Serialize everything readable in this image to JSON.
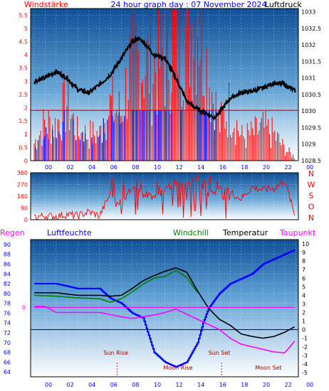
{
  "chart_data": [
    {
      "type": "line",
      "title": "24 hour graph day : 07 November 2024",
      "left_label": "Windstärke",
      "right_label": "Luftdruck",
      "y_left_ticks": [
        "0",
        "0.5",
        "1",
        "1.5",
        "2",
        "2.5",
        "3",
        "3.5",
        "4",
        "4.5",
        "5",
        "5.5"
      ],
      "y_right_ticks": [
        "1028.5",
        "1029",
        "1029.5",
        "1030",
        "1030.5",
        "1031",
        "1031.5",
        "1032",
        "1032.5",
        "1033"
      ],
      "x_ticks": [
        "00",
        "02",
        "04",
        "06",
        "08",
        "10",
        "12",
        "14",
        "16",
        "18",
        "20",
        "22",
        "00"
      ],
      "ylim_left": [
        0,
        5.75
      ],
      "ylim_right": [
        1028.5,
        1033.1
      ],
      "series": [
        {
          "name": "Luftdruck",
          "color": "#000000",
          "x": [
            0,
            1,
            2,
            3,
            4,
            5,
            6,
            7,
            8,
            9,
            9.5,
            10,
            11,
            12,
            13,
            14,
            15,
            16,
            16.5,
            17,
            18,
            19,
            20,
            21,
            22,
            23,
            24
          ],
          "y": [
            1030.9,
            1031.0,
            1031.2,
            1031.0,
            1030.65,
            1030.55,
            1030.8,
            1031.1,
            1031.6,
            1032.1,
            1032.2,
            1032.1,
            1031.7,
            1031.6,
            1031.0,
            1030.3,
            1030.05,
            1029.9,
            1029.8,
            1029.95,
            1030.4,
            1030.55,
            1030.6,
            1030.7,
            1030.85,
            1030.8,
            1030.6
          ]
        },
        {
          "name": "Windstärke",
          "color": "#ff0000",
          "x": [
            0,
            1,
            2,
            3,
            4,
            5,
            6,
            7,
            8,
            9,
            10,
            11,
            12,
            13,
            14,
            15,
            16,
            17,
            18,
            19,
            20,
            21,
            22,
            23,
            24
          ],
          "y": [
            0.6,
            1.3,
            1.2,
            2.0,
            0.9,
            0.9,
            0.9,
            1.9,
            1.6,
            3.7,
            3.4,
            3.2,
            3.6,
            4.6,
            4.4,
            5.2,
            3.0,
            1.2,
            1.9,
            0.8,
            0.9,
            1.1,
            0.9,
            0.4,
            0.1
          ]
        }
      ]
    },
    {
      "type": "line",
      "right_label_letters": [
        "N",
        "W",
        "S",
        "O",
        "N"
      ],
      "y_ticks": [
        "0",
        "90",
        "180",
        "270",
        "360"
      ],
      "ylim": [
        0,
        360
      ],
      "series": [
        {
          "name": "Windrichtung",
          "color": "#ff0000",
          "x": [
            0,
            1,
            2,
            3,
            4,
            5,
            6,
            7,
            8,
            9,
            10,
            11,
            12,
            13,
            14,
            15,
            16,
            17,
            18,
            19,
            20,
            21,
            22,
            23,
            24
          ],
          "y": [
            20,
            30,
            25,
            40,
            30,
            60,
            30,
            200,
            120,
            250,
            200,
            180,
            230,
            300,
            280,
            320,
            200,
            230,
            210,
            160,
            250,
            230,
            240,
            300,
            10
          ]
        }
      ]
    },
    {
      "type": "line",
      "legend": [
        "Regen",
        "Luftfeuchte",
        "Windchill",
        "Temperatur",
        "Taupunkt"
      ],
      "y_left_ticks": [
        "64",
        "66",
        "68",
        "70",
        "72",
        "74",
        "76",
        "78",
        "80",
        "82",
        "84",
        "86",
        "88",
        "90"
      ],
      "y_right_ticks": [
        "-5",
        "-4",
        "-3",
        "-2",
        "-1",
        "0",
        "1",
        "2",
        "3",
        "4",
        "5",
        "6",
        "7",
        "8",
        "9",
        "10"
      ],
      "regen_zero_label": "0",
      "x_ticks": [
        "00",
        "02",
        "04",
        "06",
        "08",
        "10",
        "12",
        "14",
        "16",
        "18",
        "20",
        "22",
        "00"
      ],
      "annotations": [
        "Sun Rise",
        "Moon Rise",
        "Sun Set",
        "Moon Set"
      ],
      "ylim_left": [
        63,
        91
      ],
      "ylim_right": [
        -5.5,
        10.5
      ],
      "series": [
        {
          "name": "Luftfeuchte",
          "color": "#0000ff",
          "axis": "left",
          "x": [
            0,
            2,
            4,
            6,
            7,
            8,
            9,
            10,
            11,
            12,
            13,
            14,
            15,
            15.5,
            16,
            17,
            18,
            19,
            20,
            21,
            22,
            23,
            24
          ],
          "y": [
            82,
            82,
            81,
            81,
            79,
            78,
            76,
            75,
            68,
            66,
            65,
            66,
            70,
            74,
            77,
            80,
            82,
            83,
            84,
            86,
            87,
            88,
            89
          ]
        },
        {
          "name": "Temperatur",
          "color": "#000000",
          "axis": "right",
          "x": [
            0,
            2,
            4,
            6,
            7,
            8,
            9,
            10,
            11,
            12,
            13,
            14,
            15,
            16,
            17,
            18,
            19,
            20,
            21,
            22,
            23,
            24
          ],
          "y": [
            4.3,
            4.3,
            4.0,
            4.0,
            3.9,
            4.0,
            4.8,
            5.7,
            6.3,
            6.8,
            7.2,
            6.7,
            4.5,
            2.5,
            1.2,
            0.5,
            -0.5,
            -0.8,
            -1.0,
            -0.8,
            -0.3,
            0.4
          ]
        },
        {
          "name": "Windchill",
          "color": "#008000",
          "axis": "right",
          "x": [
            0,
            2,
            4,
            6,
            7,
            8,
            9,
            10,
            11,
            12,
            13,
            14,
            15
          ],
          "y": [
            4.0,
            3.9,
            3.7,
            3.6,
            3.2,
            3.6,
            4.4,
            5.3,
            6.0,
            6.2,
            6.9,
            6.1,
            4.3
          ]
        },
        {
          "name": "Taupunkt",
          "color": "#ff00ff",
          "axis": "right",
          "x": [
            0,
            1,
            2,
            4,
            6,
            8,
            9,
            10,
            11,
            12,
            13,
            14,
            15,
            16,
            17,
            18,
            19,
            20,
            21,
            22,
            23,
            24
          ],
          "y": [
            2.7,
            2.7,
            2.0,
            2.0,
            2.0,
            1.5,
            1.3,
            1.5,
            1.7,
            2.0,
            2.4,
            1.8,
            1.2,
            0.6,
            0.0,
            -1.0,
            -1.7,
            -2.0,
            -2.3,
            -2.6,
            -2.7,
            -1.2
          ]
        },
        {
          "name": "Regen",
          "color": "#ff00ff",
          "axis": "right",
          "x": [
            0,
            24
          ],
          "y": [
            2.6,
            2.6
          ]
        }
      ]
    }
  ]
}
